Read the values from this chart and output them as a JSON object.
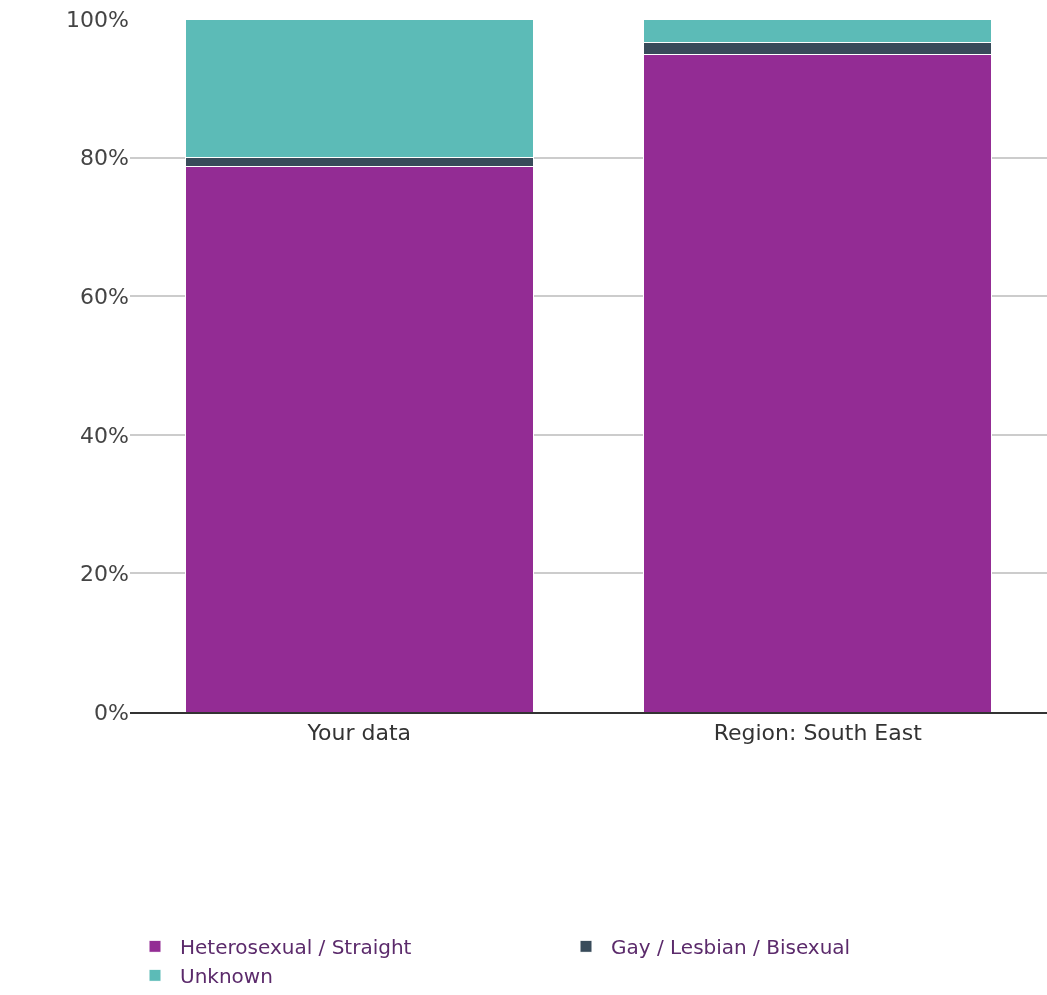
{
  "chart_data": {
    "type": "bar",
    "stacked": true,
    "categories": [
      "Your data",
      "Region: South East"
    ],
    "series": [
      {
        "name": "Heterosexual / Straight",
        "color": "#932c94",
        "values": [
          78.7,
          94.9
        ]
      },
      {
        "name": "Gay / Lesbian / Bisexual",
        "color": "#384b5a",
        "values": [
          1.3,
          1.7
        ]
      },
      {
        "name": "Unknown",
        "color": "#5cbbb7",
        "values": [
          20.0,
          3.4
        ]
      }
    ],
    "ylim": [
      0,
      100
    ],
    "yticks": [
      {
        "value": 0,
        "label": "0%"
      },
      {
        "value": 20,
        "label": "20%"
      },
      {
        "value": 40,
        "label": "40%"
      },
      {
        "value": 60,
        "label": "60%"
      },
      {
        "value": 80,
        "label": "80%"
      },
      {
        "value": 100,
        "label": "100%"
      }
    ],
    "grid": "y",
    "legend": "bottom"
  }
}
